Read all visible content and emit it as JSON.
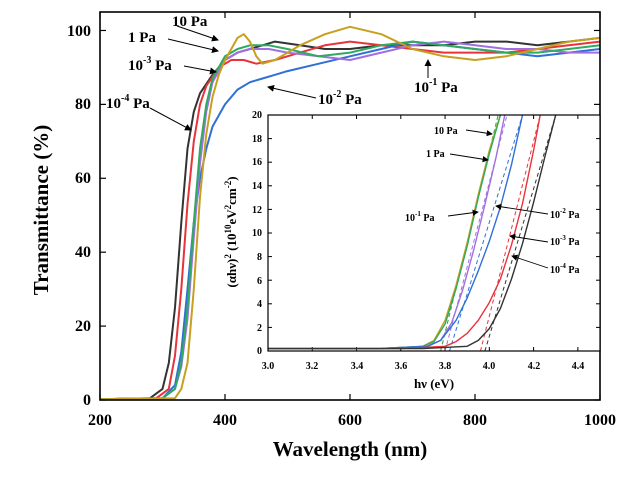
{
  "chart_data": [
    {
      "type": "line",
      "title": "",
      "xlabel": "Wavelength (nm)",
      "ylabel": "Transmittance (%)",
      "xlim": [
        200,
        1000
      ],
      "ylim": [
        0,
        105
      ],
      "x_ticks": [
        200,
        400,
        600,
        800,
        1000
      ],
      "y_ticks": [
        0,
        20,
        40,
        60,
        80,
        100
      ],
      "x_tick_labels": [
        "200",
        "400",
        "600",
        "800",
        "1000"
      ],
      "y_tick_labels": [
        "0",
        "20",
        "40",
        "60",
        "80",
        "100"
      ],
      "grid": false,
      "legend": "none",
      "series": [
        {
          "name": "10^-4 Pa",
          "color": "#333333",
          "x": [
            200,
            280,
            300,
            310,
            320,
            330,
            340,
            350,
            360,
            380,
            400,
            420,
            440,
            460,
            480,
            520,
            560,
            600,
            650,
            700,
            750,
            800,
            850,
            900,
            950,
            1000
          ],
          "y": [
            0.2,
            0.5,
            3,
            10,
            25,
            48,
            68,
            78,
            83,
            88,
            92,
            94,
            95,
            96,
            97,
            96,
            95,
            95,
            96,
            96,
            96,
            97,
            97,
            96,
            97,
            98
          ]
        },
        {
          "name": "10^-3 Pa",
          "color": "#e8333a",
          "x": [
            200,
            290,
            310,
            320,
            330,
            340,
            350,
            360,
            370,
            390,
            410,
            430,
            450,
            480,
            520,
            560,
            600,
            650,
            700,
            750,
            800,
            850,
            900,
            950,
            1000
          ],
          "y": [
            0.2,
            0.5,
            3,
            12,
            30,
            53,
            70,
            80,
            85,
            90,
            92,
            92,
            91,
            92,
            94,
            96,
            97,
            96,
            95,
            94,
            94,
            94,
            95,
            96,
            97
          ]
        },
        {
          "name": "10^-2 Pa",
          "color": "#2f6fd6",
          "x": [
            200,
            300,
            320,
            330,
            340,
            350,
            360,
            370,
            380,
            400,
            420,
            440,
            460,
            480,
            500,
            550,
            600,
            650,
            700,
            750,
            800,
            850,
            900,
            950,
            1000
          ],
          "y": [
            0.2,
            0.5,
            4,
            13,
            30,
            48,
            60,
            68,
            74,
            80,
            84,
            86,
            87,
            88,
            89,
            91,
            93,
            95,
            97,
            96,
            95,
            94,
            93,
            94,
            95
          ]
        },
        {
          "name": "10^-1 Pa",
          "color": "#a070e0",
          "x": [
            200,
            300,
            320,
            330,
            340,
            350,
            360,
            370,
            380,
            400,
            420,
            440,
            470,
            500,
            550,
            600,
            650,
            700,
            750,
            800,
            850,
            900,
            950,
            1000
          ],
          "y": [
            0.2,
            0.5,
            3,
            9,
            22,
            44,
            64,
            78,
            86,
            92,
            94,
            95,
            95,
            94,
            93,
            92,
            94,
            96,
            97,
            96,
            95,
            95,
            94,
            94
          ]
        },
        {
          "name": "1 Pa",
          "color": "#2faa60",
          "x": [
            200,
            300,
            320,
            330,
            340,
            350,
            360,
            370,
            380,
            400,
            420,
            440,
            470,
            500,
            550,
            600,
            650,
            700,
            750,
            800,
            850,
            900,
            950,
            1000
          ],
          "y": [
            0.2,
            0.5,
            3,
            10,
            25,
            48,
            68,
            80,
            87,
            93,
            95,
            96,
            96,
            95,
            93,
            94,
            96,
            97,
            96,
            95,
            94,
            94,
            95,
            96
          ]
        },
        {
          "name": "10 Pa",
          "color": "#c7a020",
          "x": [
            200,
            320,
            330,
            340,
            350,
            360,
            370,
            380,
            390,
            400,
            410,
            420,
            430,
            440,
            450,
            460,
            480,
            520,
            560,
            600,
            650,
            700,
            750,
            800,
            850,
            900,
            950,
            1000
          ],
          "y": [
            0.2,
            0.5,
            3,
            10,
            30,
            55,
            72,
            82,
            88,
            92,
            95,
            98,
            99,
            97,
            93,
            91,
            92,
            96,
            99,
            101,
            99,
            95,
            93,
            92,
            93,
            95,
            97,
            98
          ]
        }
      ],
      "annotations": [
        "10^-4 Pa",
        "10^-3 Pa",
        "1 Pa",
        "10 Pa",
        "10^-2 Pa",
        "10^-1 Pa"
      ]
    },
    {
      "type": "line",
      "title": "",
      "xlabel": "hν (eV)",
      "ylabel": "(αhν)^2 (10^10 eV^2 cm^-2)",
      "xlim": [
        3.0,
        4.5
      ],
      "ylim": [
        0,
        20
      ],
      "x_ticks": [
        3.0,
        3.2,
        3.4,
        3.6,
        3.8,
        4.0,
        4.2,
        4.4
      ],
      "y_ticks": [
        0,
        2,
        4,
        6,
        8,
        10,
        12,
        14,
        16,
        18,
        20
      ],
      "x_tick_labels": [
        "3.0",
        "3.2",
        "3.4",
        "3.6",
        "3.8",
        "4.0",
        "4.2",
        "4.4"
      ],
      "y_tick_labels": [
        "0",
        "2",
        "4",
        "6",
        "8",
        "10",
        "12",
        "14",
        "16",
        "18",
        "20"
      ],
      "grid": false,
      "legend": "none",
      "series": [
        {
          "name": "10 Pa",
          "color": "#c7a020",
          "x": [
            3.0,
            3.5,
            3.7,
            3.75,
            3.8,
            3.85,
            3.9,
            3.95,
            4.0,
            4.05
          ],
          "y": [
            0.2,
            0.2,
            0.4,
            0.9,
            2.6,
            5.6,
            9.2,
            13.3,
            17.0,
            20
          ]
        },
        {
          "name": "1 Pa",
          "color": "#2faa60",
          "x": [
            3.0,
            3.5,
            3.7,
            3.75,
            3.8,
            3.85,
            3.9,
            3.95,
            4.0,
            4.05
          ],
          "y": [
            0.2,
            0.2,
            0.4,
            0.8,
            2.3,
            5.3,
            8.9,
            13.0,
            16.7,
            20
          ]
        },
        {
          "name": "10^-1 Pa",
          "color": "#a070e0",
          "x": [
            3.0,
            3.5,
            3.72,
            3.78,
            3.83,
            3.88,
            3.93,
            3.98,
            4.03,
            4.07
          ],
          "y": [
            0.2,
            0.2,
            0.4,
            0.9,
            2.4,
            5.2,
            8.6,
            12.4,
            16.4,
            20
          ]
        },
        {
          "name": "10^-2 Pa",
          "color": "#2f6fd6",
          "x": [
            3.0,
            3.5,
            3.72,
            3.78,
            3.85,
            3.9,
            3.95,
            4.0,
            4.05,
            4.1,
            4.15
          ],
          "y": [
            0.2,
            0.2,
            0.4,
            0.9,
            2.6,
            4.5,
            6.8,
            9.3,
            12.2,
            15.8,
            20
          ]
        },
        {
          "name": "10^-3 Pa",
          "color": "#e8333a",
          "x": [
            3.0,
            3.6,
            3.8,
            3.85,
            3.9,
            3.95,
            4.0,
            4.05,
            4.1,
            4.15,
            4.2,
            4.23
          ],
          "y": [
            0.2,
            0.2,
            0.4,
            0.8,
            1.5,
            2.6,
            4.1,
            6.1,
            9.0,
            12.5,
            17.0,
            20
          ]
        },
        {
          "name": "10^-4 Pa",
          "color": "#333333",
          "x": [
            3.0,
            3.7,
            3.9,
            3.95,
            4.0,
            4.05,
            4.1,
            4.15,
            4.2,
            4.25,
            4.3
          ],
          "y": [
            0.2,
            0.2,
            0.4,
            0.9,
            1.9,
            3.6,
            6.1,
            9.1,
            12.6,
            16.4,
            20
          ]
        }
      ],
      "fit_lines": [
        {
          "color": "#c7a020",
          "x": [
            3.78,
            4.04
          ],
          "y": [
            0,
            20
          ]
        },
        {
          "color": "#2faa60",
          "x": [
            3.78,
            4.04
          ],
          "y": [
            0,
            20
          ]
        },
        {
          "color": "#a070e0",
          "x": [
            3.8,
            4.08
          ],
          "y": [
            0,
            20
          ]
        },
        {
          "color": "#2f6fd6",
          "x": [
            3.82,
            4.15
          ],
          "y": [
            0,
            20
          ]
        },
        {
          "color": "#e8333a",
          "x": [
            3.96,
            4.23
          ],
          "y": [
            0,
            20
          ]
        },
        {
          "color": "#333333",
          "x": [
            3.98,
            4.3
          ],
          "y": [
            0,
            20
          ]
        }
      ],
      "annotations": [
        "10 Pa",
        "1 Pa",
        "10^-1 Pa",
        "10^-2 Pa",
        "10^-3 Pa",
        "10^-4 Pa"
      ]
    }
  ]
}
